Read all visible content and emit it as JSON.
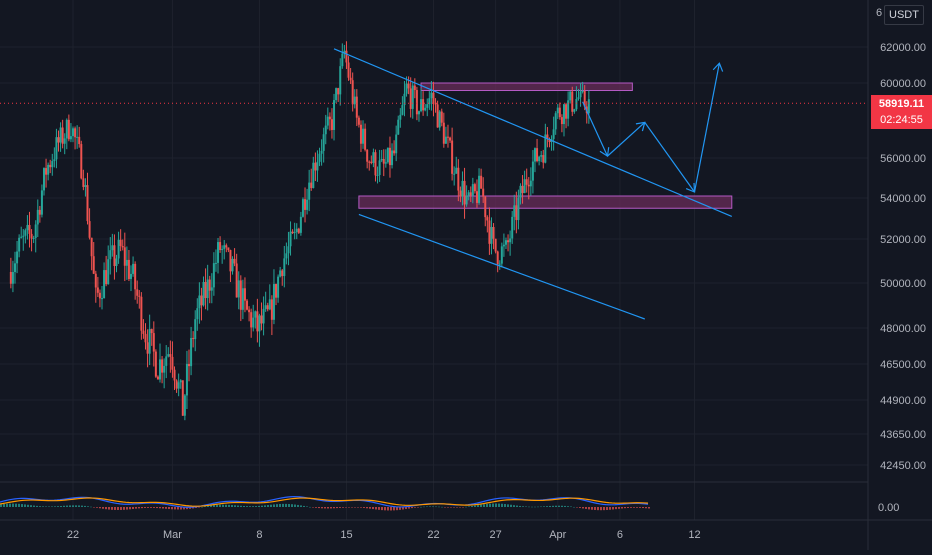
{
  "header": {
    "currency": "USDT",
    "top_left_char": "6",
    "top_right_char": "0"
  },
  "price_badge": {
    "price": "58919.11",
    "countdown": "02:24:55",
    "color": "#f23645"
  },
  "colors": {
    "background": "#131722",
    "grid": "#1e222d",
    "up": "#26a69a",
    "down": "#ef5350",
    "annotation": "#2196f3",
    "zone_fill": "#6a2c5a",
    "zone_stroke": "#b45ac4",
    "macd": "#2962ff",
    "signal": "#ff9800"
  },
  "chart_data": {
    "type": "candlestick",
    "x_axis": {
      "tick_labels": [
        "22",
        "Mar",
        "8",
        "15",
        "22",
        "27",
        "Apr",
        "6",
        "12"
      ],
      "tick_dates": [
        "2024-02-22",
        "2024-03-01",
        "2024-03-08",
        "2024-03-15",
        "2024-03-22",
        "2024-03-27",
        "2024-04-01",
        "2024-04-06",
        "2024-04-12"
      ]
    },
    "y_axis": {
      "tick_labels": [
        "62000.00",
        "60000.00",
        "56000.00",
        "54000.00",
        "52000.00",
        "50000.00",
        "48000.00",
        "46500.00",
        "44900.00",
        "43650.00",
        "42450.00"
      ],
      "range": [
        41500,
        63500
      ],
      "current_price": 58919.11
    },
    "price_path": [
      [
        "2024-02-17",
        50500
      ],
      [
        "2024-02-18",
        51800
      ],
      [
        "2024-02-19",
        52300
      ],
      [
        "2024-02-20",
        55400
      ],
      [
        "2024-02-21",
        56800
      ],
      [
        "2024-02-22",
        57800
      ],
      [
        "2024-02-23",
        55300
      ],
      [
        "2024-02-24",
        49200
      ],
      [
        "2024-02-25",
        50800
      ],
      [
        "2024-02-26",
        51500
      ],
      [
        "2024-02-27",
        50200
      ],
      [
        "2024-02-28",
        47800
      ],
      [
        "2024-02-29",
        46400
      ],
      [
        "2024-03-01",
        47200
      ],
      [
        "2024-03-02",
        44600
      ],
      [
        "2024-03-03",
        48400
      ],
      [
        "2024-03-04",
        49800
      ],
      [
        "2024-03-05",
        51600
      ],
      [
        "2024-03-06",
        50500
      ],
      [
        "2024-03-07",
        48800
      ],
      [
        "2024-03-08",
        48000
      ],
      [
        "2024-03-09",
        48600
      ],
      [
        "2024-03-10",
        51000
      ],
      [
        "2024-03-11",
        52000
      ],
      [
        "2024-03-12",
        54600
      ],
      [
        "2024-03-13",
        56500
      ],
      [
        "2024-03-14",
        58000
      ],
      [
        "2024-03-15",
        61700
      ],
      [
        "2024-03-16",
        58000
      ],
      [
        "2024-03-17",
        56000
      ],
      [
        "2024-03-18",
        55400
      ],
      [
        "2024-03-19",
        56200
      ],
      [
        "2024-03-20",
        59700
      ],
      [
        "2024-03-21",
        58600
      ],
      [
        "2024-03-22",
        59300
      ],
      [
        "2024-03-23",
        57300
      ],
      [
        "2024-03-24",
        55200
      ],
      [
        "2024-03-25",
        53700
      ],
      [
        "2024-03-26",
        54500
      ],
      [
        "2024-03-27",
        51500
      ],
      [
        "2024-03-28",
        51400
      ],
      [
        "2024-03-29",
        53700
      ],
      [
        "2024-03-30",
        55600
      ],
      [
        "2024-03-31",
        56500
      ],
      [
        "2024-04-01",
        58300
      ],
      [
        "2024-04-02",
        58800
      ],
      [
        "2024-04-03",
        59300
      ],
      [
        "2024-04-03",
        58919
      ]
    ],
    "macd_indicator": {
      "zero_label": "0.00"
    },
    "annotations": {
      "channel_upper": [
        [
          "2024-03-14",
          61900
        ],
        [
          "2024-04-15",
          53100
        ]
      ],
      "channel_lower": [
        [
          "2024-03-16",
          53200
        ],
        [
          "2024-04-08",
          48400
        ]
      ],
      "resistance_zone": {
        "from": "2024-03-21",
        "to": "2024-04-07",
        "low": 59600,
        "high": 60000
      },
      "support_zone": {
        "from": "2024-03-16",
        "to": "2024-04-15",
        "low": 53500,
        "high": 54100
      },
      "projection_path": [
        [
          "2024-04-03",
          59000
        ],
        [
          "2024-04-05",
          56100
        ],
        [
          "2024-04-08",
          57900
        ],
        [
          "2024-04-12",
          54300
        ],
        [
          "2024-04-14",
          61100
        ]
      ]
    }
  }
}
